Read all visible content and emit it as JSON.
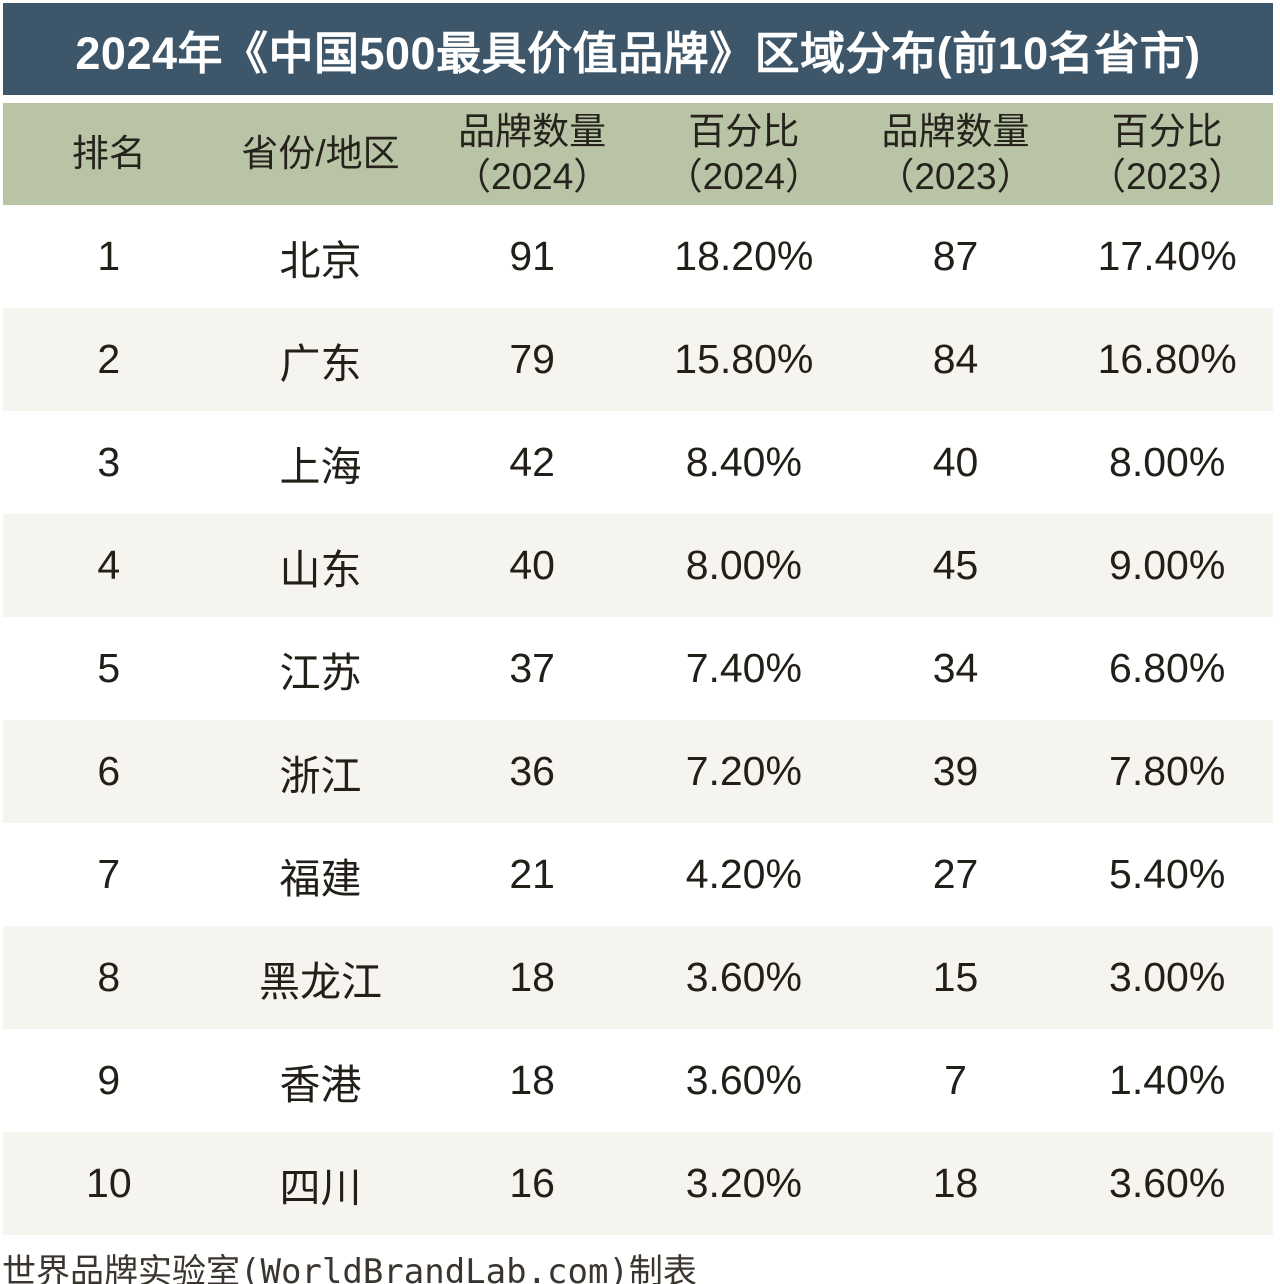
{
  "title": "2024年《中国500最具价值品牌》区域分布(前10名省市)",
  "footer": "世界品牌实验室(WorldBrandLab.com)制表",
  "colors": {
    "title_bar_bg": "#3d5669",
    "title_text": "#ffffff",
    "header_bg": "#b9c3a6",
    "row_alt_bg": "#f5f4ef",
    "body_text": "#221e18"
  },
  "chart_data": {
    "type": "table",
    "title": "2024年《中国500最具价值品牌》区域分布(前10名省市)",
    "columns": [
      {
        "label": "排名",
        "sub": ""
      },
      {
        "label": "省份/地区",
        "sub": ""
      },
      {
        "label": "品牌数量",
        "sub": "（2024）"
      },
      {
        "label": "百分比",
        "sub": "（2024）"
      },
      {
        "label": "品牌数量",
        "sub": "（2023）"
      },
      {
        "label": "百分比",
        "sub": "（2023）"
      }
    ],
    "rows": [
      [
        "1",
        "北京",
        "91",
        "18.20%",
        "87",
        "17.40%"
      ],
      [
        "2",
        "广东",
        "79",
        "15.80%",
        "84",
        "16.80%"
      ],
      [
        "3",
        "上海",
        "42",
        "8.40%",
        "40",
        "8.00%"
      ],
      [
        "4",
        "山东",
        "40",
        "8.00%",
        "45",
        "9.00%"
      ],
      [
        "5",
        "江苏",
        "37",
        "7.40%",
        "34",
        "6.80%"
      ],
      [
        "6",
        "浙江",
        "36",
        "7.20%",
        "39",
        "7.80%"
      ],
      [
        "7",
        "福建",
        "21",
        "4.20%",
        "27",
        "5.40%"
      ],
      [
        "8",
        "黑龙江",
        "18",
        "3.60%",
        "15",
        "3.00%"
      ],
      [
        "9",
        "香港",
        "18",
        "3.60%",
        "7",
        "1.40%"
      ],
      [
        "10",
        "四川",
        "16",
        "3.20%",
        "18",
        "3.60%"
      ]
    ],
    "source": "世界品牌实验室(WorldBrandLab.com)制表"
  }
}
